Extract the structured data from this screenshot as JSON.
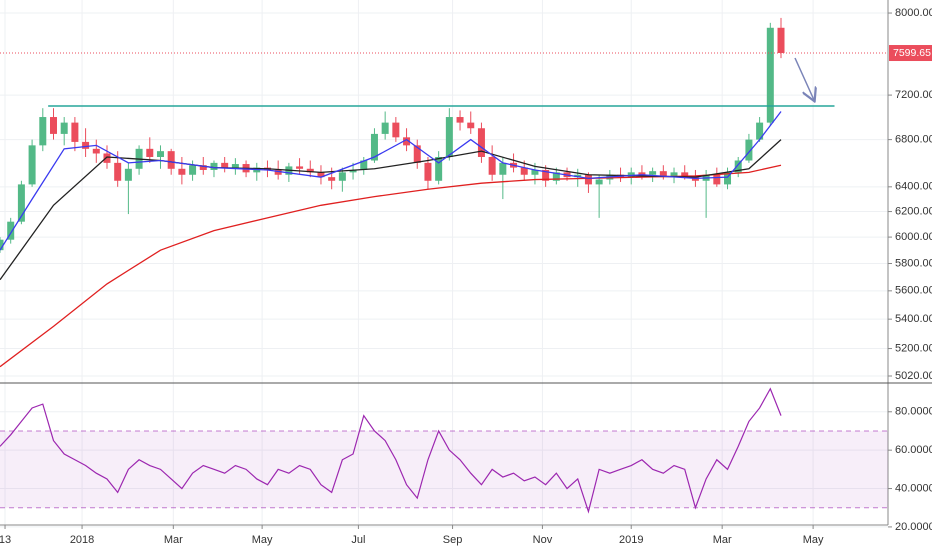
{
  "chart_data": [
    {
      "type": "candlestick",
      "log_scale": true,
      "grid": true,
      "xlim": [
        0,
        83
      ],
      "ylim": [
        4975,
        8135
      ],
      "yticks": [
        {
          "value": 8000,
          "label": "8000.00"
        },
        {
          "value": 7200,
          "label": "7200.00"
        },
        {
          "value": 6800,
          "label": "6800.00"
        },
        {
          "value": 6400,
          "label": "6400.00"
        },
        {
          "value": 6200,
          "label": "6200.00"
        },
        {
          "value": 6000,
          "label": "6000.00"
        },
        {
          "value": 5800,
          "label": "5800.00"
        },
        {
          "value": 5600,
          "label": "5600.00"
        },
        {
          "value": 5400,
          "label": "5400.00"
        },
        {
          "value": 5200,
          "label": "5200.00"
        },
        {
          "value": 5020,
          "label": "5020.00"
        }
      ],
      "up_color": "#53b987",
      "down_color": "#eb4d5c",
      "x": [
        0,
        1,
        2,
        3,
        4,
        5,
        6,
        7,
        8,
        9,
        10,
        11,
        12,
        13,
        14,
        15,
        16,
        17,
        18,
        19,
        20,
        21,
        22,
        23,
        24,
        25,
        26,
        27,
        28,
        29,
        30,
        31,
        32,
        33,
        34,
        35,
        36,
        37,
        38,
        39,
        40,
        41,
        42,
        43,
        44,
        45,
        46,
        47,
        48,
        49,
        50,
        51,
        52,
        53,
        54,
        55,
        56,
        57,
        58,
        59,
        60,
        61,
        62,
        63,
        64,
        65,
        66,
        67,
        68,
        69,
        70,
        71,
        72,
        73
      ],
      "open": [
        5900,
        5980,
        6120,
        6420,
        6750,
        7000,
        6850,
        6950,
        6780,
        6720,
        6680,
        6600,
        6450,
        6550,
        6720,
        6650,
        6700,
        6550,
        6500,
        6580,
        6540,
        6600,
        6560,
        6590,
        6520,
        6560,
        6540,
        6500,
        6570,
        6550,
        6520,
        6480,
        6450,
        6520,
        6540,
        6620,
        6850,
        6950,
        6820,
        6750,
        6600,
        6450,
        6650,
        7000,
        6950,
        6900,
        6650,
        6500,
        6600,
        6560,
        6500,
        6540,
        6450,
        6520,
        6480,
        6500,
        6420,
        6460,
        6500,
        6480,
        6520,
        6500,
        6530,
        6490,
        6520,
        6480,
        6450,
        6500,
        6420,
        6520,
        6620,
        6800,
        6950,
        7850
      ],
      "high": [
        6000,
        6150,
        6450,
        6800,
        7080,
        7080,
        7000,
        7000,
        6900,
        6800,
        6750,
        6700,
        6600,
        6750,
        6820,
        6750,
        6720,
        6650,
        6620,
        6650,
        6620,
        6650,
        6640,
        6620,
        6600,
        6620,
        6620,
        6600,
        6640,
        6620,
        6580,
        6560,
        6560,
        6600,
        6650,
        6900,
        7050,
        7000,
        6900,
        6800,
        6650,
        6700,
        7080,
        7060,
        7050,
        6950,
        6750,
        6650,
        6680,
        6620,
        6600,
        6580,
        6560,
        6560,
        6550,
        6520,
        6500,
        6540,
        6560,
        6560,
        6580,
        6560,
        6580,
        6560,
        6580,
        6540,
        6540,
        6560,
        6560,
        6650,
        6850,
        7000,
        7900,
        7950
      ],
      "low": [
        5880,
        5950,
        6100,
        6400,
        6700,
        6800,
        6750,
        6700,
        6650,
        6600,
        6550,
        6400,
        6180,
        6500,
        6600,
        6550,
        6500,
        6420,
        6450,
        6500,
        6480,
        6520,
        6500,
        6480,
        6450,
        6480,
        6460,
        6440,
        6500,
        6480,
        6420,
        6380,
        6360,
        6460,
        6500,
        6600,
        6800,
        6780,
        6700,
        6550,
        6380,
        6420,
        6620,
        6880,
        6850,
        6600,
        6450,
        6300,
        6520,
        6450,
        6420,
        6400,
        6420,
        6450,
        6400,
        6350,
        6150,
        6420,
        6440,
        6420,
        6460,
        6440,
        6460,
        6430,
        6460,
        6400,
        6150,
        6400,
        6380,
        6480,
        6600,
        6780,
        6920,
        7550
      ],
      "close": [
        5980,
        6120,
        6420,
        6750,
        7000,
        6850,
        6950,
        6780,
        6720,
        6680,
        6600,
        6450,
        6550,
        6720,
        6650,
        6700,
        6550,
        6500,
        6580,
        6540,
        6600,
        6560,
        6590,
        6520,
        6560,
        6540,
        6500,
        6570,
        6550,
        6520,
        6480,
        6450,
        6520,
        6540,
        6620,
        6850,
        6950,
        6820,
        6750,
        6600,
        6450,
        6650,
        7000,
        6950,
        6900,
        6650,
        6500,
        6600,
        6560,
        6500,
        6540,
        6450,
        6520,
        6480,
        6500,
        6420,
        6460,
        6500,
        6480,
        6520,
        6500,
        6530,
        6490,
        6520,
        6480,
        6450,
        6500,
        6420,
        6520,
        6620,
        6800,
        6950,
        7850,
        7600
      ],
      "overlays": [
        {
          "color": "#e02020",
          "x": [
            0,
            5,
            10,
            15,
            20,
            25,
            30,
            35,
            40,
            45,
            50,
            55,
            60,
            65,
            70,
            73
          ],
          "values": [
            5080,
            5350,
            5650,
            5900,
            6050,
            6150,
            6250,
            6320,
            6380,
            6430,
            6460,
            6470,
            6480,
            6490,
            6520,
            6580
          ]
        },
        {
          "color": "#222222",
          "x": [
            0,
            5,
            10,
            15,
            20,
            25,
            30,
            35,
            40,
            45,
            50,
            55,
            60,
            65,
            70,
            73
          ],
          "values": [
            5680,
            6250,
            6650,
            6620,
            6560,
            6550,
            6520,
            6550,
            6620,
            6700,
            6570,
            6500,
            6490,
            6480,
            6550,
            6800
          ]
        },
        {
          "color": "#3a3af0",
          "x": [
            0,
            3,
            6,
            9,
            12,
            15,
            20,
            25,
            30,
            35,
            38,
            41,
            44,
            47,
            50,
            55,
            60,
            65,
            68,
            71,
            73
          ],
          "values": [
            5900,
            6300,
            6720,
            6750,
            6600,
            6620,
            6560,
            6540,
            6480,
            6650,
            6800,
            6600,
            6800,
            6600,
            6540,
            6470,
            6500,
            6470,
            6480,
            6800,
            7050
          ]
        }
      ],
      "resistance": {
        "value": 7100,
        "x": [
          4.5,
          78
        ],
        "color": "#26a69a"
      },
      "last_price": 7599.65
    },
    {
      "type": "line",
      "grid": true,
      "xlim": [
        0,
        83
      ],
      "ylim": [
        21,
        95
      ],
      "yticks": [
        {
          "value": 80,
          "label": "80.0000"
        },
        {
          "value": 60,
          "label": "60.0000"
        },
        {
          "value": 40,
          "label": "40.0000"
        },
        {
          "value": 20,
          "label": "20.0000"
        }
      ],
      "band": [
        30,
        70
      ],
      "color": "#9c27b0",
      "xticks": [
        {
          "value": 0.47,
          "label": "13"
        },
        {
          "value": 7.67,
          "label": "2018"
        },
        {
          "value": 16.2,
          "label": "Mar"
        },
        {
          "value": 24.5,
          "label": "May"
        },
        {
          "value": 33.5,
          "label": "Jul"
        },
        {
          "value": 42.3,
          "label": "Sep"
        },
        {
          "value": 50.7,
          "label": "Nov"
        },
        {
          "value": 59,
          "label": "2019"
        },
        {
          "value": 67.5,
          "label": "Mar"
        },
        {
          "value": 76,
          "label": "May"
        }
      ],
      "x": [
        0,
        1,
        2,
        3,
        4,
        5,
        6,
        7,
        8,
        9,
        10,
        11,
        12,
        13,
        14,
        15,
        16,
        17,
        18,
        19,
        20,
        21,
        22,
        23,
        24,
        25,
        26,
        27,
        28,
        29,
        30,
        31,
        32,
        33,
        34,
        35,
        36,
        37,
        38,
        39,
        40,
        41,
        42,
        43,
        44,
        45,
        46,
        47,
        48,
        49,
        50,
        51,
        52,
        53,
        54,
        55,
        56,
        57,
        58,
        59,
        60,
        61,
        62,
        63,
        64,
        65,
        66,
        67,
        68,
        69,
        70,
        71,
        72,
        73
      ],
      "values": [
        62,
        68,
        75,
        82,
        84,
        65,
        58,
        55,
        52,
        48,
        45,
        38,
        50,
        55,
        52,
        50,
        45,
        40,
        48,
        52,
        50,
        48,
        52,
        50,
        45,
        42,
        50,
        48,
        52,
        50,
        42,
        38,
        55,
        58,
        78,
        70,
        65,
        55,
        42,
        35,
        55,
        70,
        60,
        55,
        48,
        42,
        50,
        46,
        48,
        44,
        46,
        42,
        48,
        40,
        45,
        28,
        50,
        48,
        50,
        52,
        55,
        50,
        48,
        52,
        50,
        30,
        45,
        55,
        50,
        62,
        75,
        82,
        92,
        78
      ]
    }
  ]
}
